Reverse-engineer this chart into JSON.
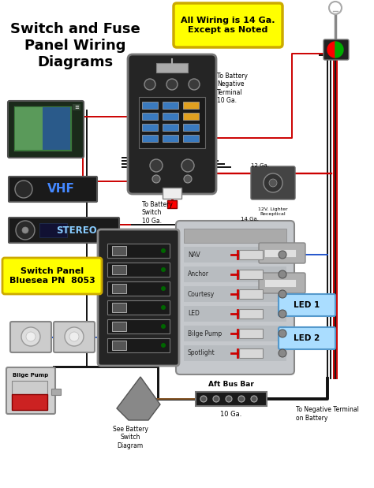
{
  "title": "Switch and Fuse\nPanel Wiring\nDiagrams",
  "title_fontsize": 13,
  "bg_color": "#ffffff",
  "note_text": "All Wiring is 14 Ga.\nExcept as Noted",
  "note_bg": "#ffff00",
  "note_border": "#ccaa00",
  "switch_panel_label": "Switch Panel\nBluesea PN  8053",
  "switch_panel_bg": "#ffff00",
  "battery_neg_text": "To Battery\nNegative\nTerminal\n10 Ga.",
  "battery_switch_text": "To Battery\nSwitch\n10 Ga.",
  "neg_terminal_text": "To Negative Terminal\non Battery",
  "aft_bus_text": "Aft Bus Bar",
  "ten_ga_text": "10 Ga.",
  "see_battery_text": "See Battery\nSwitch\nDiagram",
  "bilge_pump_text": "Bilge Pump",
  "lighter_text": "12V. Lighter\nReceptical",
  "led1_text": "LED 1",
  "led2_text": "LED 2",
  "twelve_ga_text": "12 Ga.",
  "fourteen_ga_text": "14 Ga.",
  "fuse_labels": [
    "NAV",
    "Anchor",
    "Courtesy",
    "LED",
    "Bilge Pump",
    "Spotlight"
  ],
  "wire_red": "#cc0000",
  "wire_black": "#111111",
  "wire_blue": "#2255cc",
  "wire_blue2": "#4477dd",
  "wire_brown": "#8b5a2b",
  "wire_gray": "#888888",
  "fig_width": 4.74,
  "fig_height": 6.19,
  "dpi": 100
}
